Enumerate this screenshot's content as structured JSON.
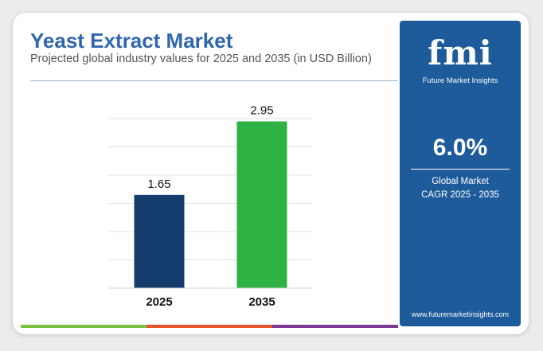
{
  "header": {
    "title": "Yeast Extract Market",
    "subtitle": "Projected global industry values for 2025 and 2035 (in USD Billion)"
  },
  "brand": {
    "logo_text": "fmi",
    "name": "Future Market Insights",
    "website": "www.futuremarketinsights.com"
  },
  "highlight": {
    "value": "6.0%",
    "label_line1": "Global Market",
    "label_line2": "CAGR 2025 - 2035"
  },
  "colors": {
    "title": "#2f66ad",
    "panel": "#1d5b9a",
    "bar_2025": "#143d6e",
    "bar_2035": "#2db143",
    "bottom_strip": [
      "#7cc242",
      "#e5542d",
      "#7b3a96"
    ]
  },
  "chart_data": {
    "type": "bar",
    "categories": [
      "2025",
      "2035"
    ],
    "values": [
      1.65,
      2.95
    ],
    "data_labels": [
      "1.65",
      "2.95"
    ],
    "bar_colors": [
      "#143d6e",
      "#2db143"
    ],
    "title": "",
    "xlabel": "",
    "ylabel": "",
    "ylim": [
      0,
      3.0
    ],
    "grid": true,
    "legend": "none"
  }
}
